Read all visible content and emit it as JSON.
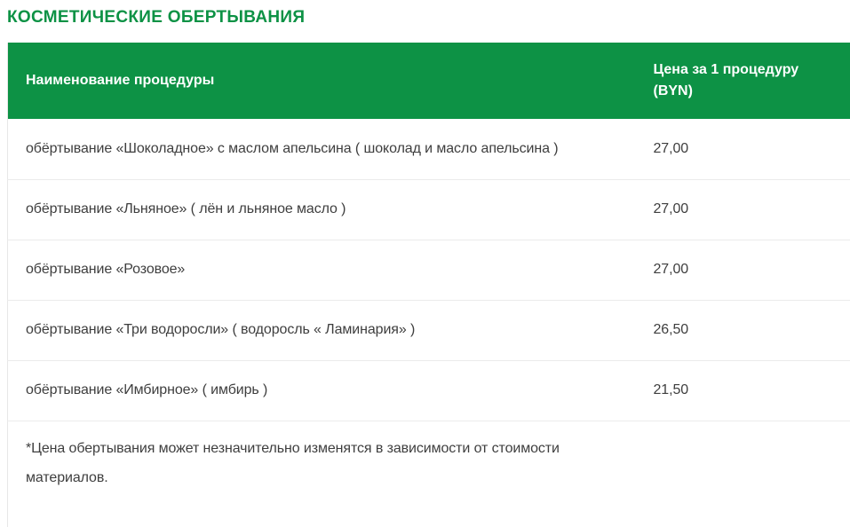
{
  "page": {
    "title": "КОСМЕТИЧЕСКИЕ ОБЕРТЫВАНИЯ"
  },
  "colors": {
    "accent_green": "#0d9245",
    "header_text": "#ffffff",
    "body_text": "#3e3e3e",
    "row_border": "#ebebeb"
  },
  "table": {
    "columns": {
      "name": "Наименование процедуры",
      "price": "Цена за 1 процедуру (BYN)"
    },
    "rows": [
      {
        "name": "обёртывание «Шоколадное» с маслом апельсина ( шоколад и масло апельсина )",
        "price": "27,00"
      },
      {
        "name": "обёртывание «Льняное» ( лён и льняное масло )",
        "price": "27,00"
      },
      {
        "name": "обёртывание «Розовое»",
        "price": "27,00"
      },
      {
        "name": "обёртывание «Три водоросли» ( водоросль « Ламинария» )",
        "price": "26,50"
      },
      {
        "name": "обёртывание «Имбирное» ( имбирь )",
        "price": "21,50"
      }
    ],
    "footnote": "*Цена обертывания может незначительно изменятся в зависимости от стоимости материалов."
  }
}
